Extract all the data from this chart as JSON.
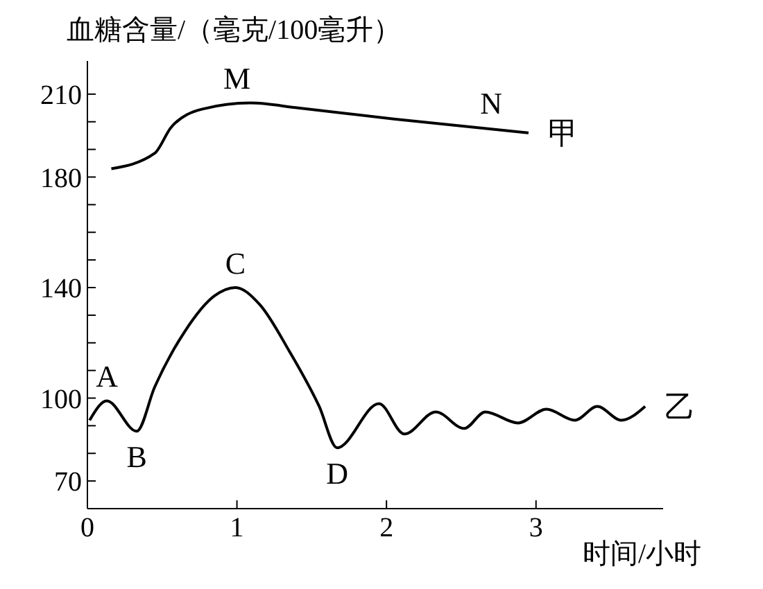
{
  "chart_data": {
    "type": "line",
    "title": "血糖含量/（毫克/100毫升）",
    "xlabel": "时间/小时",
    "xlim": [
      0,
      3.85
    ],
    "xticks": [
      0,
      1,
      2,
      3
    ],
    "ylim": [
      60,
      222
    ],
    "yticks": [
      70,
      {
        "value": 80,
        "label": null
      },
      {
        "value": 90,
        "label": null
      },
      100,
      {
        "value": 110,
        "label": null
      },
      {
        "value": 120,
        "label": null
      },
      {
        "value": 130,
        "label": null
      },
      140,
      {
        "value": 150,
        "label": null
      },
      {
        "value": 160,
        "label": null
      },
      {
        "value": 170,
        "label": null
      },
      180,
      {
        "value": 190,
        "label": null
      },
      {
        "value": 200,
        "label": null
      },
      210
    ],
    "grid": false,
    "marker": "none",
    "line_style": "solid",
    "series": [
      {
        "name": "甲",
        "color": "#000000",
        "x": [
          0.16,
          0.45,
          0.56,
          0.77,
          1.09,
          1.41,
          2.05,
          2.95
        ],
        "values": [
          183,
          188.6,
          198,
          204.6,
          206.8,
          205,
          201,
          196
        ]
      },
      {
        "name": "乙",
        "color": "#000000",
        "x": [
          0.015,
          0.13,
          0.33,
          0.45,
          0.65,
          0.85,
          0.99,
          1.15,
          1.35,
          1.55,
          1.67,
          1.95,
          2.12,
          2.33,
          2.52,
          2.66,
          2.88,
          3.07,
          3.26,
          3.41,
          3.57,
          3.73
        ],
        "values": [
          92,
          99,
          88,
          104,
          124,
          137,
          140,
          134,
          117,
          97,
          82,
          98,
          87,
          95,
          89,
          95,
          91,
          96,
          92,
          97,
          92,
          97
        ]
      }
    ],
    "annotations": [
      {
        "text": "M",
        "x": 1.0,
        "y": 207
      },
      {
        "text": "N",
        "x": 2.7,
        "y": 198
      },
      {
        "text": "A",
        "x": 0.13,
        "y": 99
      },
      {
        "text": "B",
        "x": 0.33,
        "y": 88
      },
      {
        "text": "C",
        "x": 0.99,
        "y": 140
      },
      {
        "text": "D",
        "x": 1.67,
        "y": 82
      }
    ]
  }
}
